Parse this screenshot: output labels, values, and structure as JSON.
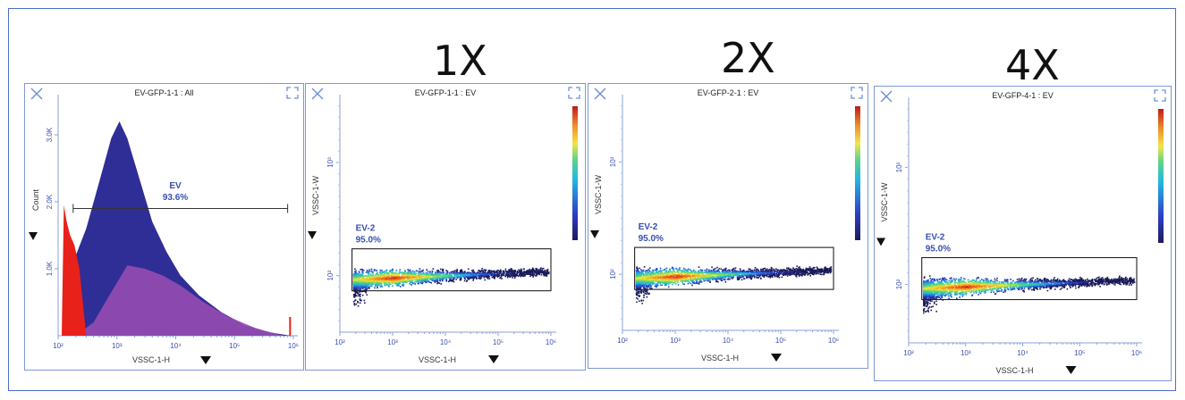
{
  "header_labels": [
    "1X",
    "2X",
    "4X"
  ],
  "panels": [
    {
      "title": "EV-GFP-1-1 : All",
      "xlabel": "VSSC-1-H",
      "ylabel": "Count",
      "gate_name": "EV",
      "gate_pct": "93.6%",
      "yticks": [
        "1.0K",
        "2.0K",
        "3.0K"
      ]
    },
    {
      "title": "EV-GFP-1-1 : EV",
      "xlabel": "VSSC-1-H",
      "ylabel": "VSSC-1-W",
      "gate_name": "EV-2",
      "gate_pct": "95.0%"
    },
    {
      "title": "EV-GFP-2-1 : EV",
      "xlabel": "VSSC-1-H",
      "ylabel": "VSSC-1-W",
      "gate_name": "EV-2",
      "gate_pct": "95.0%"
    },
    {
      "title": "EV-GFP-4-1 : EV",
      "xlabel": "VSSC-1-H",
      "ylabel": "VSSC-1-W",
      "gate_name": "EV-2",
      "gate_pct": "95.0%"
    }
  ],
  "colors": {
    "frame": "#4a6fc7",
    "gate_text": "#3a4fb0",
    "hist_blue": "#2f2d96",
    "hist_purple": "#9b4fb5",
    "hist_red": "#e8211a",
    "panel_border": "#7f98d4"
  },
  "chart_data": [
    {
      "type": "area",
      "title": "EV-GFP-1-1 : All",
      "xlabel": "VSSC-1-H",
      "ylabel": "Count",
      "x_scale": "log",
      "xlim": [
        100,
        1000000
      ],
      "ylim": [
        0,
        3600
      ],
      "x_tick_labels": [
        "10²",
        "10³",
        "10⁴",
        "10⁵",
        "10⁶"
      ],
      "y_tick_labels": [
        "1.0K",
        "2.0K",
        "3.0K"
      ],
      "gate": {
        "name": "EV",
        "percent": "93.6%",
        "range": [
          180,
          800000
        ],
        "y": 1900
      },
      "series": [
        {
          "color": "#2f2d96",
          "x": [
            150,
            200,
            300,
            500,
            800,
            1100,
            1500,
            2500,
            4000,
            7000,
            12000,
            25000,
            60000,
            150000,
            400000,
            900000
          ],
          "y": [
            0,
            1200,
            1600,
            2300,
            2950,
            3200,
            2950,
            2300,
            1700,
            1250,
            900,
            600,
            350,
            160,
            50,
            0
          ]
        },
        {
          "color": "#9b4fb5",
          "x": [
            200,
            400,
            800,
            1500,
            3000,
            6000,
            12000,
            30000,
            80000,
            250000,
            700000
          ],
          "y": [
            0,
            200,
            650,
            1050,
            1000,
            900,
            750,
            500,
            280,
            100,
            0
          ]
        },
        {
          "color": "#e8211a",
          "x": [
            115,
            125,
            140,
            160,
            190,
            230,
            300
          ],
          "y": [
            0,
            1950,
            1700,
            1500,
            1350,
            1000,
            0
          ]
        }
      ]
    },
    {
      "type": "heatmap",
      "title": "EV-GFP-1-1 : EV",
      "xlabel": "VSSC-1-H",
      "ylabel": "VSSC-1-W",
      "x_scale": "log",
      "y_scale": "log",
      "xlim": [
        100,
        1000000
      ],
      "x_tick_labels": [
        "10²",
        "10³",
        "10⁴",
        "10⁵",
        "10⁶"
      ],
      "y_tick_labels": [
        "10²",
        "10³"
      ],
      "gate": {
        "name": "EV-2",
        "percent": "95.0%"
      }
    },
    {
      "type": "heatmap",
      "title": "EV-GFP-2-1 : EV",
      "xlabel": "VSSC-1-H",
      "ylabel": "VSSC-1-W",
      "x_scale": "log",
      "y_scale": "log",
      "xlim": [
        100,
        1000000
      ],
      "x_tick_labels": [
        "10²",
        "10³",
        "10⁴",
        "10⁵",
        "10⁶"
      ],
      "y_tick_labels": [
        "10²",
        "10³"
      ],
      "gate": {
        "name": "EV-2",
        "percent": "95.0%"
      }
    },
    {
      "type": "heatmap",
      "title": "EV-GFP-4-1 : EV",
      "xlabel": "VSSC-1-H",
      "ylabel": "VSSC-1-W",
      "x_scale": "log",
      "y_scale": "log",
      "xlim": [
        100,
        1000000
      ],
      "x_tick_labels": [
        "10²",
        "10³",
        "10⁴",
        "10⁵",
        "10⁶"
      ],
      "y_tick_labels": [
        "10²",
        "10³"
      ],
      "gate": {
        "name": "EV-2",
        "percent": "95.0%"
      }
    }
  ]
}
